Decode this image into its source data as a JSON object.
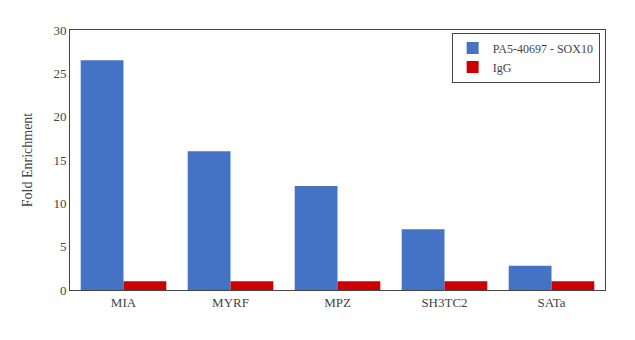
{
  "chart_data": {
    "type": "bar",
    "categories": [
      "MIA",
      "MYRF",
      "MPZ",
      "SH3TC2",
      "SATa"
    ],
    "series": [
      {
        "name": "PA5-40697 - SOX10",
        "color": "#4472C4",
        "values": [
          26.5,
          16.0,
          12.0,
          7.0,
          2.8
        ]
      },
      {
        "name": "IgG",
        "color": "#CC0000",
        "values": [
          1.0,
          1.0,
          1.0,
          1.0,
          1.0
        ]
      }
    ],
    "ylabel": "Fold Enrichment",
    "ylim": [
      0,
      30
    ],
    "yticks": [
      0,
      5,
      10,
      15,
      20,
      25,
      30
    ],
    "grid": false,
    "legend": "upper right"
  }
}
